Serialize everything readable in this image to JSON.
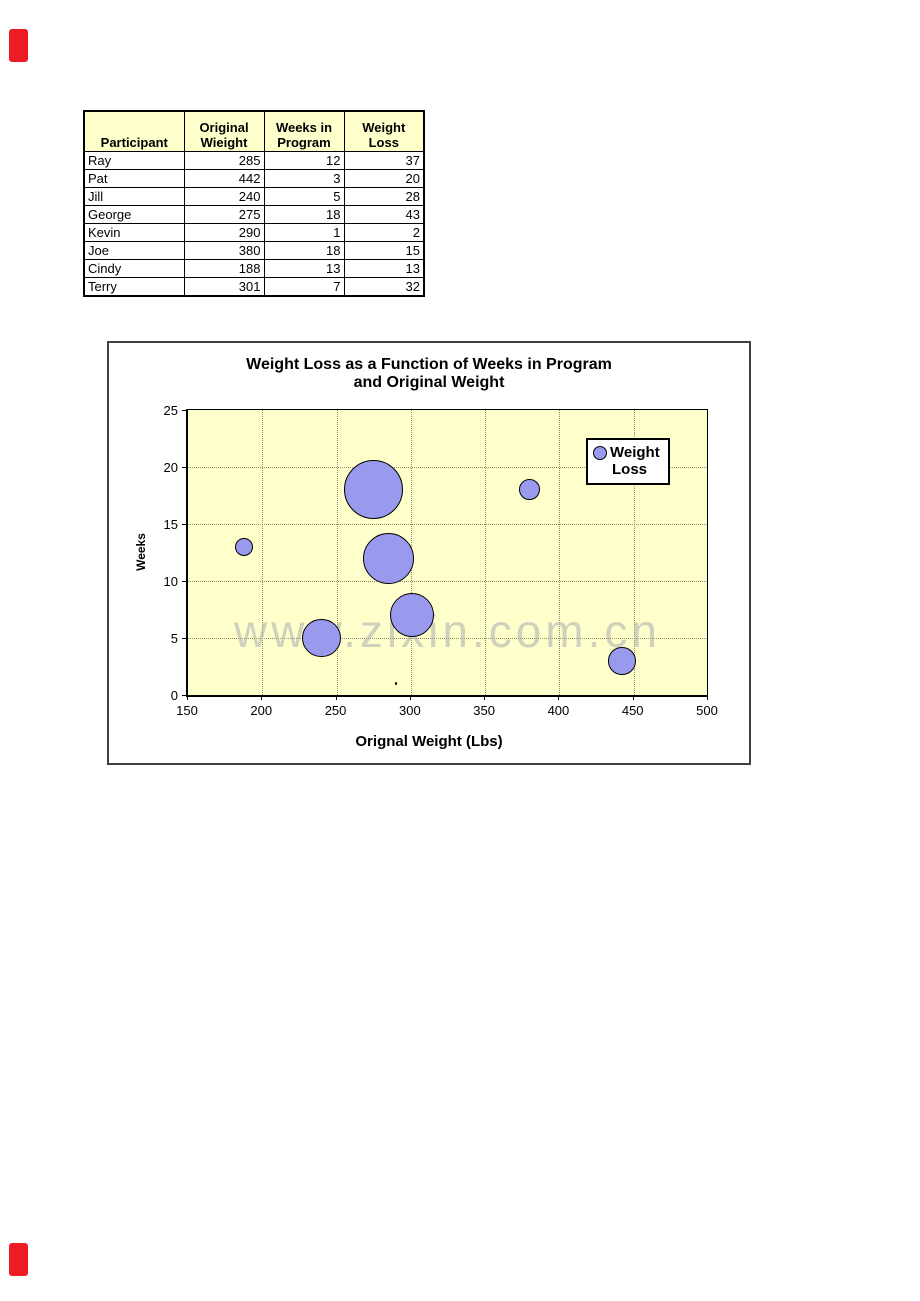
{
  "decorations": {
    "red_marker_color": "#ed1c24"
  },
  "table": {
    "headers": [
      "Participant",
      "Original Wieight",
      "Weeks in Program",
      "Weight Loss"
    ],
    "rows": [
      {
        "participant": "Ray",
        "original_weight": "285",
        "weeks_in_program": "12",
        "weight_loss": "37"
      },
      {
        "participant": "Pat",
        "original_weight": "442",
        "weeks_in_program": "3",
        "weight_loss": "20"
      },
      {
        "participant": "Jill",
        "original_weight": "240",
        "weeks_in_program": "5",
        "weight_loss": "28"
      },
      {
        "participant": "George",
        "original_weight": "275",
        "weeks_in_program": "18",
        "weight_loss": "43"
      },
      {
        "participant": "Kevin",
        "original_weight": "290",
        "weeks_in_program": "1",
        "weight_loss": "2"
      },
      {
        "participant": "Joe",
        "original_weight": "380",
        "weeks_in_program": "18",
        "weight_loss": "15"
      },
      {
        "participant": "Cindy",
        "original_weight": "188",
        "weeks_in_program": "13",
        "weight_loss": "13"
      },
      {
        "participant": "Terry",
        "original_weight": "301",
        "weeks_in_program": "7",
        "weight_loss": "32"
      }
    ]
  },
  "chart_data": {
    "type": "bubble",
    "title_line1": "Weight Loss as a Function of Weeks in Program",
    "title_line2": "and Original Weight",
    "xlabel": "Orignal Weight (Lbs)",
    "ylabel": "Weeks",
    "xlim": [
      150,
      500
    ],
    "ylim": [
      0,
      25
    ],
    "xticks": [
      150,
      200,
      250,
      300,
      350,
      400,
      450,
      500
    ],
    "yticks": [
      0,
      5,
      10,
      15,
      20,
      25
    ],
    "grid": "dotted",
    "plot_bg": "#ffffcc",
    "bubble_fill": "#9999ee",
    "legend": {
      "position": "upper-right-inside",
      "line1": "Weight",
      "line2": "Loss"
    },
    "series": [
      {
        "name": "Weight Loss",
        "points": [
          {
            "label": "Ray",
            "x": 285,
            "y": 12,
            "size": 37
          },
          {
            "label": "Pat",
            "x": 442,
            "y": 3,
            "size": 20
          },
          {
            "label": "Jill",
            "x": 240,
            "y": 5,
            "size": 28
          },
          {
            "label": "George",
            "x": 275,
            "y": 18,
            "size": 43
          },
          {
            "label": "Kevin",
            "x": 290,
            "y": 1,
            "size": 2
          },
          {
            "label": "Joe",
            "x": 380,
            "y": 18,
            "size": 15
          },
          {
            "label": "Cindy",
            "x": 188,
            "y": 13,
            "size": 13
          },
          {
            "label": "Terry",
            "x": 301,
            "y": 7,
            "size": 32
          }
        ]
      }
    ],
    "watermark": "www.zixin.com.cn"
  }
}
